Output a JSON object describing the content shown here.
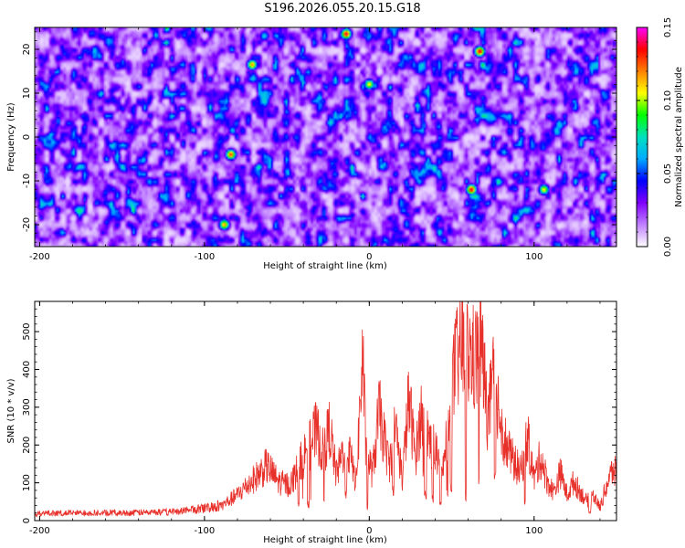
{
  "title": "S196.2026.055.20.15.G18",
  "colors": {
    "snr_line": "#e8302a",
    "axis": "#000000",
    "colormap": [
      "#ffffff",
      "#c080ff",
      "#8000ff",
      "#0000ff",
      "#00aaff",
      "#00e0c0",
      "#00ff00",
      "#ffff00",
      "#ff8000",
      "#ff0000",
      "#ff00ff"
    ]
  },
  "chart_data": [
    {
      "type": "heatmap",
      "name": "spectrogram",
      "xlabel": "Height of straight line (km)",
      "ylabel": "Frequency (Hz)",
      "xlim": [
        -203,
        150
      ],
      "ylim": [
        -25,
        25
      ],
      "xticks": [
        -200,
        -100,
        0,
        100
      ],
      "yticks": [
        -20,
        -10,
        0,
        10,
        20
      ],
      "xtick_labels": [
        "-200",
        "-100",
        "0",
        "100"
      ],
      "ytick_labels": [
        "-20",
        "-10",
        "0",
        "10",
        "20"
      ],
      "colorbar": {
        "label": "Normalized spectral amplitude",
        "range": [
          0.0,
          0.15
        ],
        "ticks": [
          0.0,
          0.05,
          0.1,
          0.15
        ],
        "tick_labels": [
          "0.00",
          "0.05",
          "0.10",
          "0.15"
        ]
      },
      "hotspots": [
        {
          "x": -14,
          "y": 23.5,
          "v": 0.14
        },
        {
          "x": 67,
          "y": 19.5,
          "v": 0.14
        },
        {
          "x": 62,
          "y": -12,
          "v": 0.14
        },
        {
          "x": -84,
          "y": -4,
          "v": 0.13
        },
        {
          "x": -71,
          "y": 16.5,
          "v": 0.12
        },
        {
          "x": 0,
          "y": 12,
          "v": 0.11
        },
        {
          "x": -88,
          "y": -20,
          "v": 0.12
        },
        {
          "x": 106,
          "y": -12,
          "v": 0.11
        }
      ]
    },
    {
      "type": "line",
      "name": "snr",
      "xlabel": "Height of straight line (km)",
      "ylabel": "SNR (10 * v/v)",
      "xlim": [
        -203,
        150
      ],
      "ylim": [
        0,
        580
      ],
      "xticks": [
        -200,
        -100,
        0,
        100
      ],
      "yticks": [
        0,
        100,
        200,
        300,
        400,
        500
      ],
      "xtick_labels": [
        "-200",
        "-100",
        "0",
        "100"
      ],
      "ytick_labels": [
        "0",
        "100",
        "200",
        "300",
        "400",
        "500"
      ],
      "series": [
        {
          "name": "SNR",
          "x": [
            -203,
            -180,
            -150,
            -120,
            -100,
            -90,
            -80,
            -70,
            -62,
            -55,
            -48,
            -40,
            -32,
            -28,
            -24,
            -20,
            -14,
            -8,
            -4,
            -2,
            2,
            6,
            12,
            16,
            20,
            24,
            28,
            32,
            36,
            40,
            44,
            48,
            52,
            56,
            60,
            64,
            68,
            72,
            76,
            80,
            84,
            88,
            92,
            96,
            100,
            104,
            108,
            112,
            116,
            120,
            124,
            128,
            132,
            136,
            140,
            144,
            148,
            150
          ],
          "y": [
            20,
            22,
            22,
            25,
            35,
            45,
            80,
            130,
            170,
            120,
            110,
            200,
            280,
            210,
            290,
            140,
            250,
            120,
            510,
            210,
            150,
            340,
            170,
            300,
            130,
            380,
            200,
            350,
            260,
            220,
            130,
            300,
            480,
            540,
            520,
            500,
            540,
            320,
            460,
            300,
            220,
            180,
            150,
            260,
            130,
            200,
            120,
            90,
            150,
            80,
            120,
            90,
            60,
            80,
            40,
            110,
            160,
            140
          ]
        }
      ]
    }
  ]
}
